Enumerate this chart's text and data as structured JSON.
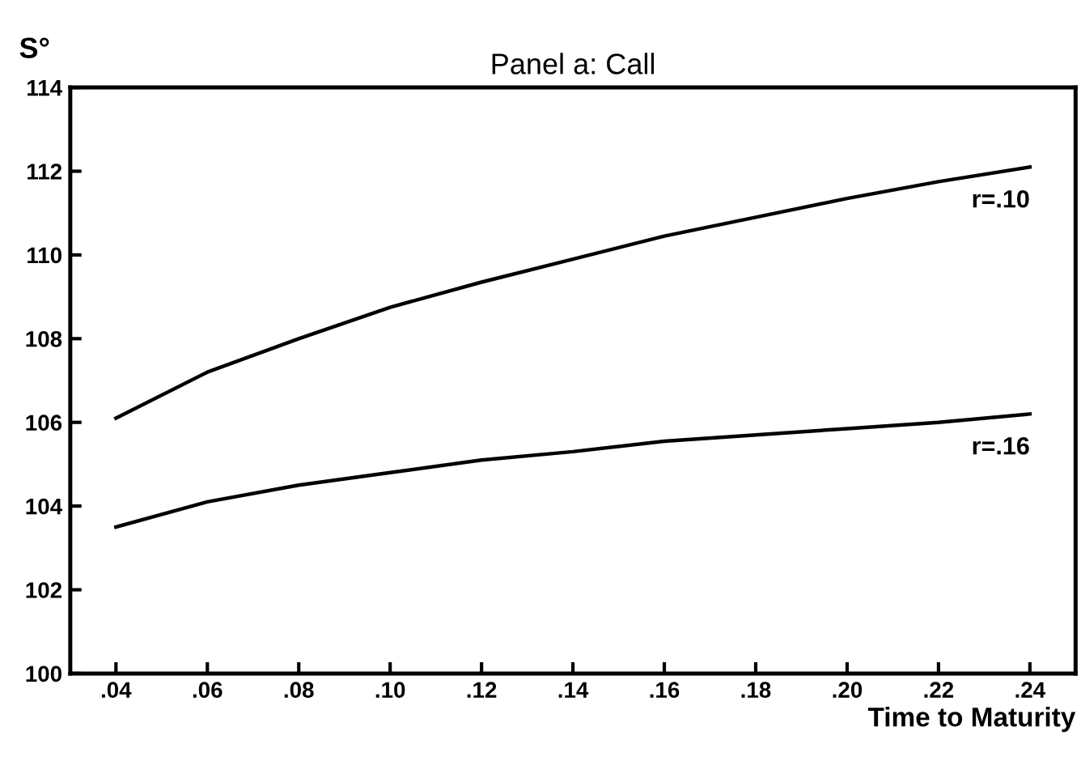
{
  "chart_data": {
    "type": "line",
    "title": "Panel a: Call",
    "ylabel": "S°",
    "xlabel": "Time to Maturity",
    "x": [
      0.04,
      0.06,
      0.08,
      0.1,
      0.12,
      0.14,
      0.16,
      0.18,
      0.2,
      0.22,
      0.24
    ],
    "series": [
      {
        "name": "r=.10",
        "color": "#000000",
        "values": [
          106.1,
          107.2,
          108.0,
          108.75,
          109.35,
          109.9,
          110.45,
          110.9,
          111.35,
          111.75,
          112.1
        ]
      },
      {
        "name": "r=.16",
        "color": "#000000",
        "values": [
          103.5,
          104.1,
          104.5,
          104.8,
          105.1,
          105.3,
          105.55,
          105.7,
          105.85,
          106.0,
          106.2
        ]
      }
    ],
    "xlim": [
      0.03,
      0.25
    ],
    "ylim": [
      100,
      114
    ],
    "xticks": [
      {
        "value": 0.04,
        "label": ".04"
      },
      {
        "value": 0.06,
        "label": ".06"
      },
      {
        "value": 0.08,
        "label": ".08"
      },
      {
        "value": 0.1,
        "label": ".10"
      },
      {
        "value": 0.12,
        "label": ".12"
      },
      {
        "value": 0.14,
        "label": ".14"
      },
      {
        "value": 0.16,
        "label": ".16"
      },
      {
        "value": 0.18,
        "label": ".18"
      },
      {
        "value": 0.2,
        "label": ".20"
      },
      {
        "value": 0.22,
        "label": ".22"
      },
      {
        "value": 0.24,
        "label": ".24"
      }
    ],
    "yticks": [
      100,
      102,
      104,
      106,
      108,
      110,
      112,
      114
    ],
    "grid": false,
    "legend": false,
    "marker": "none",
    "line_style": "solid"
  }
}
